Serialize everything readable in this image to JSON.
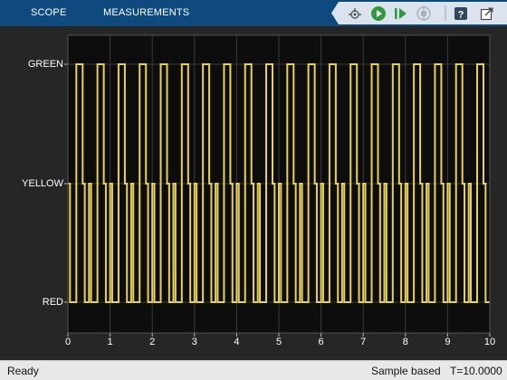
{
  "toolstrip": {
    "tabs": [
      {
        "label": "SCOPE"
      },
      {
        "label": "MEASUREMENTS"
      }
    ],
    "quick_access": [
      {
        "icon": "signal-selector-icon"
      },
      {
        "icon": "run-icon"
      },
      {
        "icon": "step-forward-icon"
      },
      {
        "icon": "stop-icon"
      },
      {
        "icon": "help-icon"
      },
      {
        "icon": "undock-icon"
      }
    ]
  },
  "plot": {
    "y_levels": [
      "GREEN",
      "YELLOW",
      "RED"
    ],
    "x_ticks": [
      "0",
      "1",
      "2",
      "3",
      "4",
      "5",
      "6",
      "7",
      "8",
      "9",
      "10"
    ],
    "trace_color": "#e8d44a",
    "plot_bg": "#0d0d0d",
    "grid": true
  },
  "chart_data": {
    "type": "line",
    "xlim": [
      0,
      10
    ],
    "y_categories": [
      "RED",
      "YELLOW",
      "GREEN"
    ],
    "period": 0.5,
    "cycle": [
      {
        "state": "YELLOW",
        "from": 0.0,
        "to": 0.05
      },
      {
        "state": "RED",
        "from": 0.05,
        "to": 0.2
      },
      {
        "state": "GREEN",
        "from": 0.2,
        "to": 0.35
      },
      {
        "state": "YELLOW",
        "from": 0.35,
        "to": 0.4
      },
      {
        "state": "RED",
        "from": 0.4,
        "to": 0.5
      }
    ],
    "legend": "none"
  },
  "status": {
    "text": "Ready",
    "mode": "Sample based",
    "time": "T=10.0000"
  }
}
